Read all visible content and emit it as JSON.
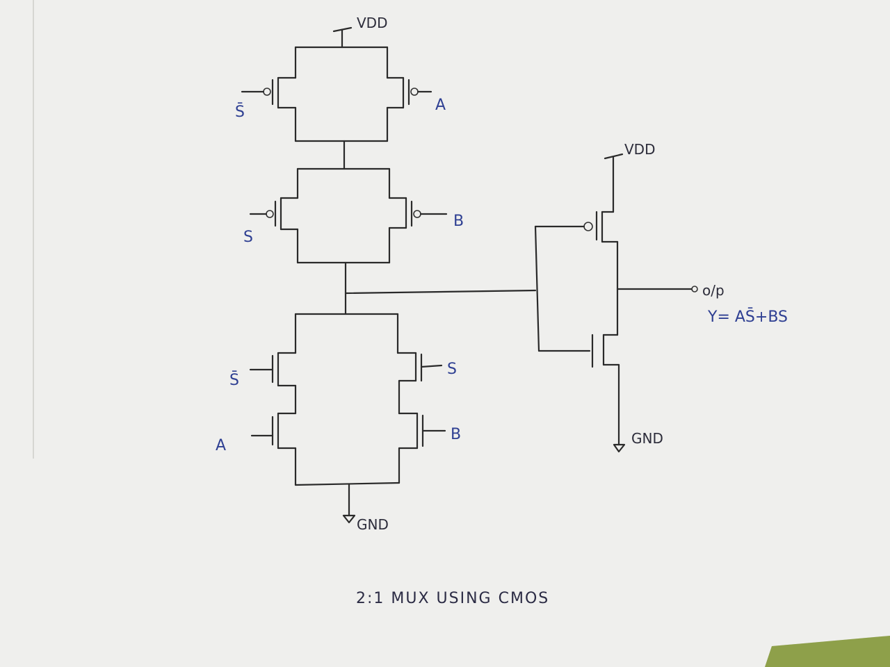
{
  "labels": {
    "vdd_left": "VDD",
    "vdd_right": "VDD",
    "gnd_left": "GND",
    "gnd_right": "GND",
    "pmos1_gate": "S̄",
    "pmos2_gate": "A",
    "pmos3_gate": "S",
    "pmos4_gate": "B",
    "nmos1_gate": "S̄",
    "nmos2_gate": "S",
    "nmos3_gate": "A",
    "nmos4_gate": "B",
    "output": "o/p",
    "equation": "Y= AS̄+BS",
    "title": "2:1 MUX USING CMOS"
  },
  "colors": {
    "paper": "#efefed",
    "ink": "#2a2a2a",
    "blue_ink": "#2e3f92",
    "green_edge": "#8ea04a"
  }
}
